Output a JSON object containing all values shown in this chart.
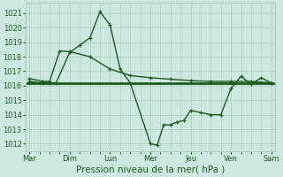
{
  "background_color": "#cce8e0",
  "grid_color": "#aaccbb",
  "line_color": "#1a5c1a",
  "xlabel": "Pression niveau de la mer( hPa )",
  "xlabel_fontsize": 7.5,
  "ylim": [
    1011.5,
    1021.7
  ],
  "yticks": [
    1012,
    1013,
    1014,
    1015,
    1016,
    1017,
    1018,
    1019,
    1020,
    1021
  ],
  "xtick_labels": [
    "Mar",
    "Dim",
    "Lun",
    "Mer",
    "Jeu",
    "Ven",
    "Sam"
  ],
  "xtick_positions": [
    0,
    1,
    2,
    3,
    4,
    5,
    6
  ],
  "line1_x": [
    0.0,
    0.33,
    0.5,
    0.66,
    1.0,
    1.25,
    1.5,
    1.75,
    2.0,
    2.25,
    2.5,
    3.0,
    3.17,
    3.33,
    3.5,
    3.66,
    3.83,
    4.0,
    4.25,
    4.5,
    4.75,
    5.0,
    5.25,
    5.5,
    5.75,
    6.0
  ],
  "line1_y": [
    1016.3,
    1016.2,
    1016.2,
    1016.2,
    1018.3,
    1018.8,
    1019.3,
    1021.1,
    1020.2,
    1017.15,
    1016.2,
    1012.0,
    1011.9,
    1013.3,
    1013.3,
    1013.5,
    1013.6,
    1014.3,
    1014.15,
    1014.0,
    1014.0,
    1015.8,
    1016.65,
    1016.1,
    1016.55,
    1016.2
  ],
  "line2_x": [
    0.0,
    0.33,
    0.5,
    0.75,
    1.0,
    1.5,
    2.0,
    2.5,
    3.0,
    3.5,
    4.0,
    4.5,
    5.0,
    5.5,
    6.0
  ],
  "line2_y": [
    1016.5,
    1016.3,
    1016.3,
    1018.4,
    1018.35,
    1018.0,
    1017.15,
    1016.7,
    1016.55,
    1016.45,
    1016.35,
    1016.3,
    1016.3,
    1016.3,
    1016.2
  ],
  "line3_x": [
    -0.1,
    6.1
  ],
  "line3_y": [
    1016.2,
    1016.2
  ],
  "tick_fontsize": 6,
  "marker_size": 3.5,
  "linewidth": 1.0,
  "linewidth3": 2.0
}
